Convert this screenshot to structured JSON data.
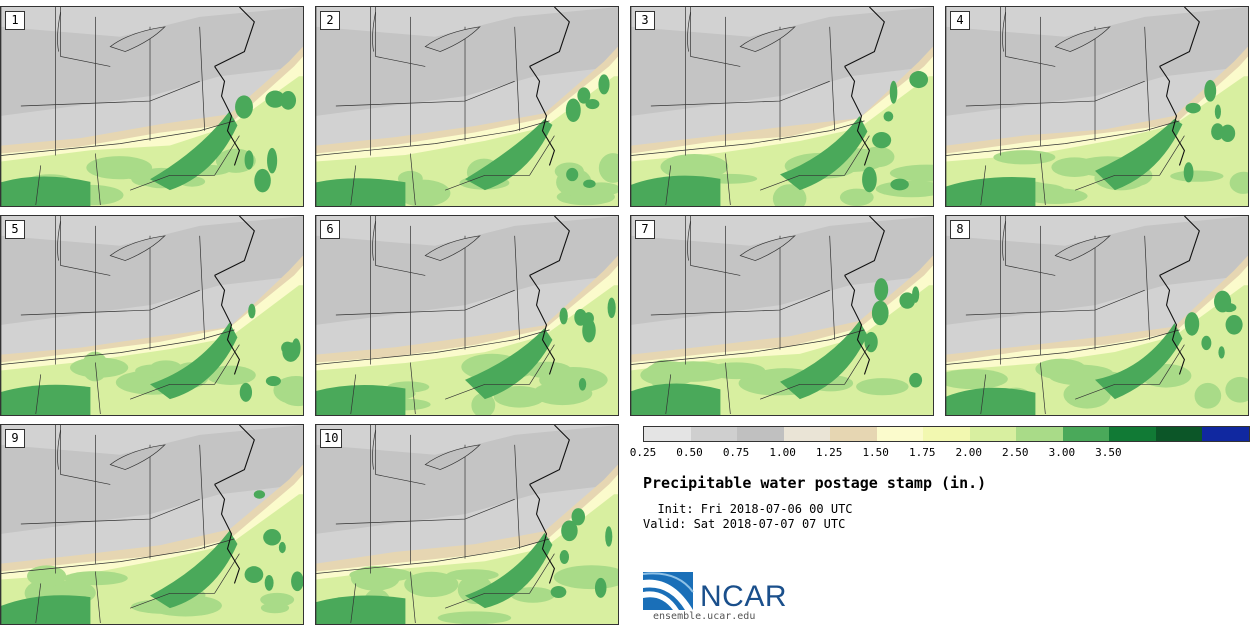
{
  "stamps": [
    {
      "label": "1"
    },
    {
      "label": "2"
    },
    {
      "label": "3"
    },
    {
      "label": "4"
    },
    {
      "label": "5"
    },
    {
      "label": "6"
    },
    {
      "label": "7"
    },
    {
      "label": "8"
    },
    {
      "label": "9"
    },
    {
      "label": "10"
    }
  ],
  "legend": {
    "ticks": [
      "0.25",
      "0.50",
      "0.75",
      "1.00",
      "1.25",
      "1.50",
      "1.75",
      "2.00",
      "2.50",
      "3.00",
      "3.50"
    ],
    "colors": [
      "#e4e4e4",
      "#cfcfcf",
      "#c0c0c0",
      "#eae4d6",
      "#e6d6b2",
      "#fbfbcc",
      "#f2f8b0",
      "#d8efa0",
      "#a9db88",
      "#4aa95a",
      "#117a35",
      "#0c5628",
      "#1028a0"
    ]
  },
  "title": "Precipitable water postage stamp (in.)",
  "init": "  Init: Fri 2018-07-06 00 UTC",
  "valid": "Valid: Sat 2018-07-07 07 UTC",
  "logo": {
    "text": "NCAR",
    "url_text": "ensemble.ucar.edu"
  }
}
